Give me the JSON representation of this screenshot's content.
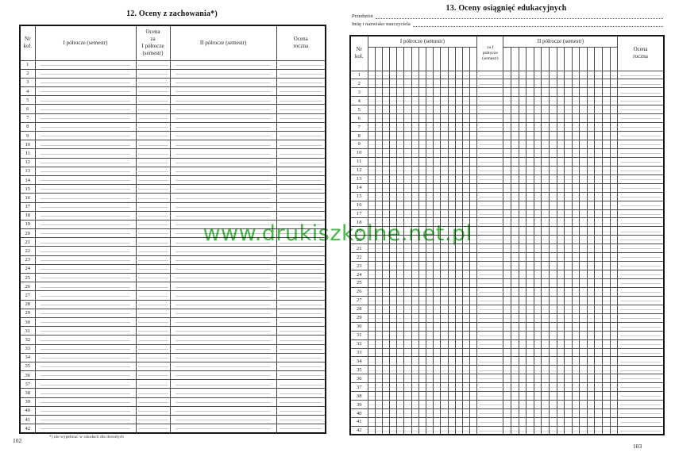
{
  "watermark": {
    "text": "www.drukiszkolne.net.pl",
    "color": "#3bb03b"
  },
  "left_page": {
    "title": "12. Oceny z zachowania*)",
    "page_number": "102",
    "footnote": "*) nie wypełniać w szkołach dla dorosłych",
    "table": {
      "headers": {
        "nr": "Nr\nkol.",
        "sem1": "I półrocze (semestr)",
        "grade_sem1": "Ocena\nza\nI półrocze\n(semestr)",
        "sem2": "II półrocze (semestr)",
        "annual": "Ocena\nroczna"
      },
      "row_numbers": [
        1,
        2,
        3,
        4,
        5,
        6,
        7,
        8,
        9,
        10,
        11,
        12,
        13,
        14,
        15,
        16,
        17,
        18,
        19,
        20,
        21,
        22,
        23,
        24,
        25,
        26,
        27,
        28,
        29,
        30,
        31,
        32,
        33,
        34,
        35,
        36,
        37,
        38,
        39,
        40,
        41,
        42
      ]
    }
  },
  "right_page": {
    "title": "13. Oceny osiągnięć edukacyjnych",
    "page_number": "103",
    "fields": [
      {
        "label": "Przedmiot"
      },
      {
        "label": "Imię i nazwisko nauczyciela"
      }
    ],
    "table": {
      "headers": {
        "nr": "Nr\nkol.",
        "sem1": "I półrocze (semestr)",
        "grade_sem1": "za I\npółrocze\n(semestr)",
        "sem2": "II półrocze (semestr)",
        "annual": "Ocena\nroczna"
      },
      "columns_per_semester": 15,
      "row_numbers": [
        1,
        2,
        3,
        4,
        5,
        6,
        7,
        8,
        9,
        10,
        11,
        12,
        13,
        14,
        15,
        16,
        17,
        18,
        19,
        20,
        21,
        22,
        23,
        24,
        25,
        26,
        27,
        28,
        29,
        30,
        31,
        32,
        33,
        34,
        35,
        36,
        37,
        38,
        39,
        40,
        41,
        42
      ]
    }
  }
}
